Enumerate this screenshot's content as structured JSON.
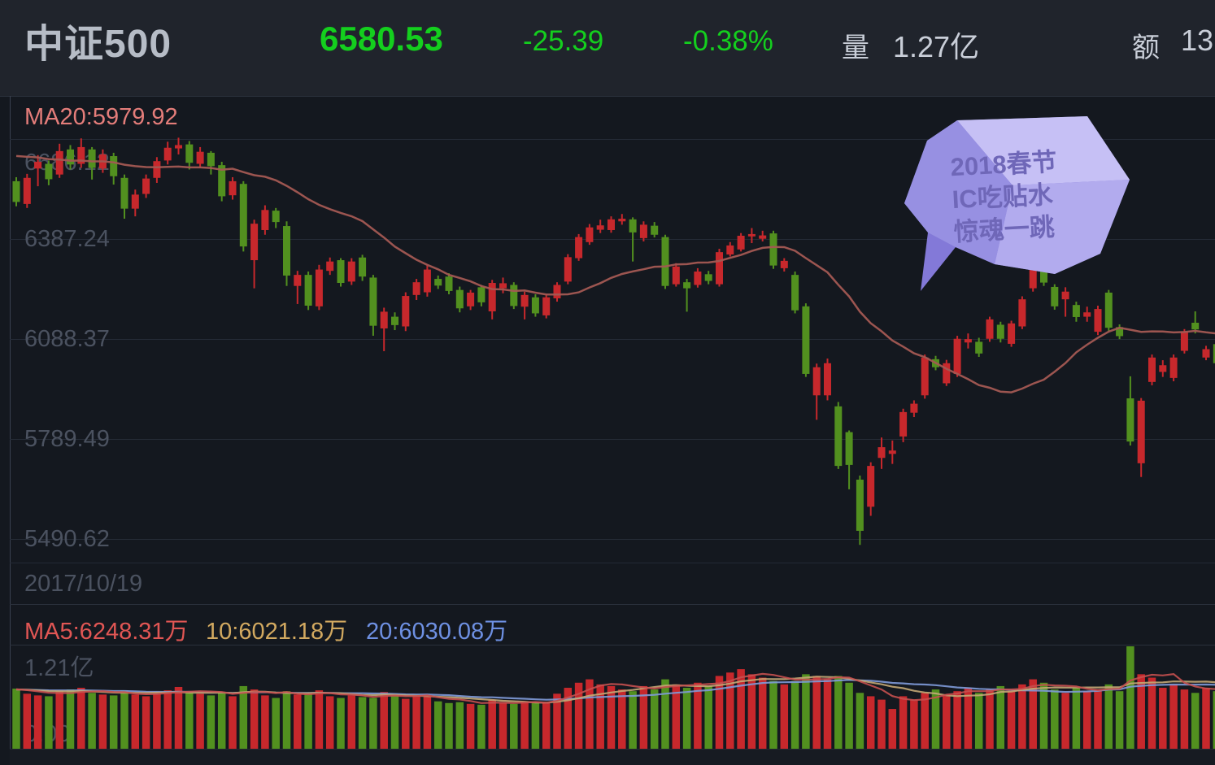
{
  "header": {
    "title": "中证500",
    "price": "6580.53",
    "change": "-25.39",
    "change_pct": "-0.38%",
    "volume_label": "量",
    "volume_value": "1.27亿",
    "amount_label": "额",
    "amount_value": "13"
  },
  "price_pane": {
    "ma20_label": "MA20:5979.92",
    "y_ticks": [
      "6686.12",
      "6387.24",
      "6088.37",
      "5789.49",
      "5490.62"
    ],
    "date_label": "2017/10/19"
  },
  "annotation": {
    "lines": [
      "2018春节",
      "IC吃贴水",
      "惊魂一跳"
    ]
  },
  "volume_pane": {
    "ma5_label": "MA5:6248.31万",
    "ma10_label": "10:6021.18万",
    "ma20_label": "20:6030.08万",
    "max_label": "1.21亿",
    "zero_label": "0.00"
  },
  "colors": {
    "up_candle": "#c7282c",
    "down_candle": "#52901f",
    "price_ma20_line": "#a35953",
    "vol_ma5_line": "#c4504f",
    "vol_ma10_line": "#c3a875",
    "vol_ma20_line": "#7e9ad8",
    "quote_green": "#14cf1e",
    "grid": "#252b36",
    "axis_text": "#4b5260",
    "bubble_light": "#c6c0f5",
    "bubble_mid": "#b2abee",
    "bubble_dark": "#9790e2",
    "bubble_base": "#8379d8"
  },
  "chart_data": {
    "type": "candlestick",
    "title": "中证500 daily candlestick with volume",
    "first_visible_date": "2017/10/19",
    "y_axis_ticks": [
      6686.12,
      6387.24,
      6088.37,
      5789.49,
      5490.62
    ],
    "ma20_last_label_value": 5979.92,
    "volume_axis_max_wan": 12100,
    "volume_axis_min": 0,
    "legend": {
      "vol_ma5_wan": 6248.31,
      "vol_ma10_wan": 6021.18,
      "vol_ma20_wan": 6030.08
    },
    "candles_ohlc": [
      [
        6560,
        6572,
        6485,
        6498
      ],
      [
        6492,
        6582,
        6480,
        6570
      ],
      [
        6598,
        6638,
        6545,
        6618
      ],
      [
        6612,
        6622,
        6548,
        6566
      ],
      [
        6580,
        6672,
        6570,
        6650
      ],
      [
        6655,
        6668,
        6595,
        6610
      ],
      [
        6612,
        6688,
        6600,
        6662
      ],
      [
        6655,
        6662,
        6565,
        6600
      ],
      [
        6598,
        6655,
        6585,
        6640
      ],
      [
        6635,
        6645,
        6550,
        6575
      ],
      [
        6570,
        6580,
        6448,
        6478
      ],
      [
        6478,
        6535,
        6455,
        6520
      ],
      [
        6522,
        6580,
        6510,
        6568
      ],
      [
        6570,
        6632,
        6555,
        6620
      ],
      [
        6622,
        6678,
        6610,
        6660
      ],
      [
        6658,
        6690,
        6640,
        6668
      ],
      [
        6670,
        6680,
        6595,
        6615
      ],
      [
        6612,
        6662,
        6600,
        6648
      ],
      [
        6645,
        6650,
        6580,
        6605
      ],
      [
        6608,
        6618,
        6500,
        6515
      ],
      [
        6518,
        6572,
        6505,
        6560
      ],
      [
        6552,
        6560,
        6350,
        6365
      ],
      [
        6324,
        6445,
        6240,
        6433
      ],
      [
        6414,
        6488,
        6400,
        6474
      ],
      [
        6472,
        6480,
        6420,
        6438
      ],
      [
        6426,
        6440,
        6247,
        6278
      ],
      [
        6247,
        6292,
        6193,
        6280
      ],
      [
        6280,
        6290,
        6175,
        6188
      ],
      [
        6186,
        6310,
        6175,
        6296
      ],
      [
        6292,
        6332,
        6280,
        6320
      ],
      [
        6324,
        6330,
        6245,
        6256
      ],
      [
        6260,
        6330,
        6250,
        6320
      ],
      [
        6332,
        6340,
        6262,
        6275
      ],
      [
        6272,
        6280,
        6098,
        6128
      ],
      [
        6120,
        6182,
        6052,
        6170
      ],
      [
        6155,
        6168,
        6115,
        6130
      ],
      [
        6126,
        6228,
        6112,
        6217
      ],
      [
        6220,
        6268,
        6205,
        6258
      ],
      [
        6228,
        6308,
        6215,
        6296
      ],
      [
        6268,
        6278,
        6238,
        6248
      ],
      [
        6275,
        6285,
        6222,
        6232
      ],
      [
        6235,
        6245,
        6168,
        6180
      ],
      [
        6186,
        6235,
        6175,
        6227
      ],
      [
        6243,
        6250,
        6186,
        6198
      ],
      [
        6171,
        6265,
        6147,
        6256
      ],
      [
        6240,
        6272,
        6225,
        6255
      ],
      [
        6250,
        6258,
        6178,
        6187
      ],
      [
        6185,
        6230,
        6147,
        6220
      ],
      [
        6213,
        6222,
        6155,
        6165
      ],
      [
        6159,
        6222,
        6150,
        6213
      ],
      [
        6210,
        6258,
        6200,
        6250
      ],
      [
        6260,
        6342,
        6252,
        6333
      ],
      [
        6330,
        6402,
        6322,
        6393
      ],
      [
        6378,
        6432,
        6370,
        6422
      ],
      [
        6415,
        6445,
        6405,
        6428
      ],
      [
        6414,
        6455,
        6406,
        6446
      ],
      [
        6440,
        6462,
        6430,
        6448
      ],
      [
        6446,
        6452,
        6320,
        6407
      ],
      [
        6390,
        6440,
        6380,
        6430
      ],
      [
        6427,
        6438,
        6392,
        6400
      ],
      [
        6393,
        6400,
        6238,
        6247
      ],
      [
        6252,
        6315,
        6245,
        6305
      ],
      [
        6258,
        6268,
        6170,
        6240
      ],
      [
        6250,
        6300,
        6242,
        6290
      ],
      [
        6282,
        6292,
        6252,
        6262
      ],
      [
        6252,
        6358,
        6245,
        6348
      ],
      [
        6341,
        6378,
        6335,
        6368
      ],
      [
        6356,
        6405,
        6350,
        6397
      ],
      [
        6395,
        6420,
        6375,
        6402
      ],
      [
        6388,
        6412,
        6380,
        6398
      ],
      [
        6404,
        6412,
        6298,
        6308
      ],
      [
        6300,
        6330,
        6290,
        6322
      ],
      [
        6280,
        6290,
        6165,
        6174
      ],
      [
        6186,
        6195,
        5975,
        5984
      ],
      [
        5920,
        6015,
        5847,
        6004
      ],
      [
        5920,
        6030,
        5905,
        6016
      ],
      [
        5887,
        5900,
        5700,
        5709
      ],
      [
        5810,
        5815,
        5639,
        5712
      ],
      [
        5668,
        5680,
        5473,
        5515
      ],
      [
        5587,
        5720,
        5560,
        5709
      ],
      [
        5733,
        5794,
        5700,
        5765
      ],
      [
        5745,
        5785,
        5715,
        5755
      ],
      [
        5797,
        5880,
        5780,
        5870
      ],
      [
        5868,
        5905,
        5855,
        5895
      ],
      [
        5920,
        6042,
        5910,
        6033
      ],
      [
        6028,
        6038,
        5995,
        6004
      ],
      [
        5956,
        6026,
        5948,
        6016
      ],
      [
        5984,
        6098,
        5975,
        6089
      ],
      [
        6078,
        6105,
        6060,
        6088
      ],
      [
        6080,
        6092,
        6035,
        6045
      ],
      [
        6089,
        6155,
        6080,
        6147
      ],
      [
        6131,
        6140,
        6078,
        6089
      ],
      [
        6074,
        6143,
        6065,
        6135
      ],
      [
        6126,
        6216,
        6118,
        6207
      ],
      [
        6240,
        6305,
        6230,
        6296
      ],
      [
        6290,
        6298,
        6247,
        6257
      ],
      [
        6244,
        6252,
        6176,
        6186
      ],
      [
        6207,
        6243,
        6155,
        6230
      ],
      [
        6190,
        6200,
        6140,
        6154
      ],
      [
        6155,
        6185,
        6140,
        6168
      ],
      [
        6110,
        6188,
        6100,
        6178
      ],
      [
        6227,
        6235,
        6112,
        6122
      ],
      [
        6124,
        6132,
        6088,
        6097
      ],
      [
        5911,
        5977,
        5770,
        5782
      ],
      [
        5717,
        5912,
        5676,
        5904
      ],
      [
        5960,
        6042,
        5950,
        6033
      ],
      [
        5990,
        6025,
        5975,
        6010
      ],
      [
        5972,
        6042,
        5962,
        6033
      ],
      [
        6053,
        6118,
        6045,
        6110
      ],
      [
        6137,
        6171,
        6105,
        6117
      ],
      [
        6033,
        6068,
        6025,
        6058
      ],
      [
        6073,
        6080,
        6008,
        6016
      ]
    ],
    "volumes_wan": [
      7100,
      6500,
      6300,
      6200,
      6800,
      7000,
      7200,
      6600,
      6400,
      6300,
      6900,
      6400,
      6200,
      6500,
      6900,
      7300,
      6800,
      6500,
      6300,
      6600,
      6200,
      7400,
      7000,
      6300,
      6000,
      6800,
      6400,
      6600,
      6900,
      6200,
      6000,
      6300,
      6100,
      6000,
      6700,
      6300,
      5900,
      6200,
      6400,
      5600,
      5400,
      5500,
      5300,
      5200,
      5800,
      5400,
      5300,
      5600,
      5500,
      5400,
      6500,
      7200,
      7800,
      8200,
      7600,
      7400,
      7000,
      6800,
      7400,
      7000,
      8200,
      7600,
      7200,
      7800,
      7400,
      8600,
      9000,
      9400,
      8800,
      8400,
      8000,
      7600,
      8000,
      8800,
      8600,
      8200,
      8600,
      7800,
      6600,
      6200,
      5800,
      4700,
      6200,
      5800,
      6600,
      7000,
      6400,
      6800,
      7200,
      6600,
      7000,
      7400,
      6800,
      7600,
      8200,
      7800,
      7000,
      6600,
      7200,
      6800,
      7000,
      7600,
      6800,
      12100,
      8800,
      8400,
      7200,
      7600,
      7000,
      6600,
      7200,
      6800
    ],
    "ma20_seed_closes": [
      6600,
      6620,
      6650,
      6670,
      6680,
      6670,
      6660,
      6650,
      6640,
      6630,
      6620,
      6610,
      6620,
      6630,
      6640,
      6650,
      6660,
      6650,
      6640,
      6620
    ],
    "volume_ma_seed_wan": 7000
  }
}
